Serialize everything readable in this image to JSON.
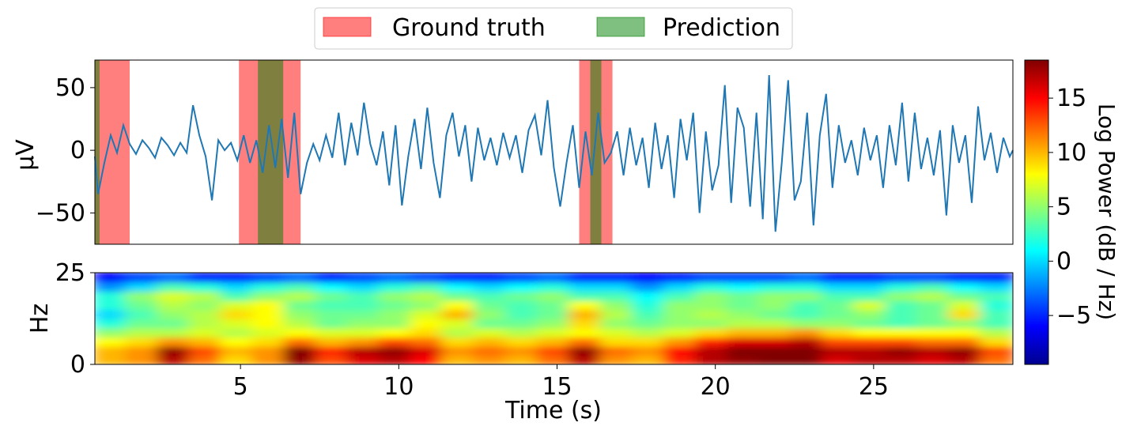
{
  "legend": {
    "placement": "top-center",
    "items": [
      {
        "label": "Ground truth",
        "color": "#ff0000",
        "alpha": 0.5
      },
      {
        "label": "Prediction",
        "color": "#008000",
        "alpha": 0.5
      }
    ]
  },
  "chart_data": [
    {
      "type": "line",
      "panel": "eeg-signal",
      "xlim": [
        0.4,
        29.4
      ],
      "ylim": [
        -75,
        72
      ],
      "ylabel": "µV",
      "yticks": [
        50,
        0,
        -50
      ],
      "ytick_labels": [
        "50",
        "0",
        "−50"
      ],
      "line_color": "#1f77b4",
      "grid": false,
      "ground_truth_intervals": [
        [
          0.4,
          1.5
        ],
        [
          4.95,
          6.9
        ],
        [
          15.7,
          16.75
        ]
      ],
      "prediction_intervals": [
        [
          0.4,
          0.55
        ],
        [
          5.55,
          6.35
        ],
        [
          16.05,
          16.4
        ]
      ],
      "series": [
        {
          "x": [
            0.4,
            0.5,
            0.7,
            0.9,
            1.1,
            1.3,
            1.5,
            1.7,
            1.9,
            2.1,
            2.3,
            2.5,
            2.7,
            2.9,
            3.1,
            3.3,
            3.5,
            3.7,
            3.9,
            4.1,
            4.3,
            4.5,
            4.7,
            4.9,
            5.1,
            5.3,
            5.5,
            5.7,
            5.9,
            6.1,
            6.3,
            6.5,
            6.7,
            6.9,
            7.1,
            7.3,
            7.5,
            7.7,
            7.9,
            8.1,
            8.3,
            8.5,
            8.7,
            8.9,
            9.1,
            9.3,
            9.5,
            9.7,
            9.9,
            10.1,
            10.3,
            10.5,
            10.7,
            10.9,
            11.1,
            11.3,
            11.5,
            11.7,
            11.9,
            12.1,
            12.3,
            12.5,
            12.7,
            12.9,
            13.1,
            13.3,
            13.5,
            13.7,
            13.9,
            14.1,
            14.3,
            14.5,
            14.7,
            14.9,
            15.1,
            15.3,
            15.5,
            15.7,
            15.9,
            16.1,
            16.3,
            16.5,
            16.7,
            16.9,
            17.1,
            17.3,
            17.5,
            17.7,
            17.9,
            18.1,
            18.3,
            18.5,
            18.7,
            18.9,
            19.1,
            19.3,
            19.5,
            19.7,
            19.9,
            20.1,
            20.3,
            20.5,
            20.7,
            20.9,
            21.1,
            21.3,
            21.5,
            21.7,
            21.9,
            22.1,
            22.3,
            22.5,
            22.7,
            22.9,
            23.1,
            23.3,
            23.5,
            23.7,
            23.9,
            24.1,
            24.3,
            24.5,
            24.7,
            24.9,
            25.1,
            25.3,
            25.5,
            25.7,
            25.9,
            26.1,
            26.3,
            26.5,
            26.7,
            26.9,
            27.1,
            27.3,
            27.5,
            27.7,
            27.9,
            28.1,
            28.3,
            28.5,
            28.7,
            28.9,
            29.1,
            29.3,
            29.4
          ],
          "values": [
            -5,
            -35,
            -10,
            12,
            -2,
            20,
            5,
            -3,
            8,
            2,
            -6,
            10,
            4,
            -4,
            6,
            -2,
            36,
            12,
            -5,
            -40,
            8,
            0,
            6,
            -8,
            12,
            -10,
            8,
            -18,
            20,
            -14,
            25,
            -22,
            30,
            -35,
            -10,
            5,
            -8,
            12,
            -6,
            30,
            -12,
            22,
            -4,
            38,
            5,
            -12,
            15,
            -28,
            20,
            -44,
            -5,
            25,
            -15,
            34,
            -10,
            -38,
            12,
            30,
            -5,
            20,
            -25,
            18,
            -8,
            10,
            -12,
            14,
            -6,
            12,
            -18,
            16,
            28,
            -4,
            40,
            -14,
            -45,
            -10,
            20,
            -30,
            15,
            -20,
            30,
            -10,
            -2,
            15,
            -20,
            18,
            -12,
            10,
            -30,
            22,
            -15,
            12,
            -38,
            25,
            -8,
            30,
            -50,
            15,
            -32,
            -12,
            52,
            -42,
            34,
            18,
            -45,
            30,
            -55,
            60,
            -65,
            -10,
            56,
            -40,
            -25,
            30,
            -60,
            12,
            45,
            -30,
            20,
            -10,
            8,
            -20,
            18,
            -8,
            12,
            -30,
            20,
            -12,
            38,
            -25,
            30,
            -15,
            10,
            -20,
            16,
            -52,
            20,
            -10,
            12,
            -42,
            35,
            -8,
            14,
            -18,
            10,
            -5,
            0
          ]
        }
      ],
      "xticks": [
        5,
        10,
        15,
        20,
        25
      ],
      "xtick_labels": [
        "5",
        "10",
        "15",
        "20",
        "25"
      ]
    },
    {
      "type": "heatmap",
      "panel": "spectrogram",
      "xlim": [
        0.4,
        29.4
      ],
      "ylim": [
        0,
        25
      ],
      "xlabel": "Time (s)",
      "ylabel": "Hz",
      "yticks": [
        25,
        0
      ],
      "ytick_labels": [
        "25",
        "0"
      ],
      "xticks": [
        5,
        10,
        15,
        20,
        25
      ],
      "xtick_labels": [
        "5",
        "10",
        "15",
        "20",
        "25"
      ],
      "colormap": "jet",
      "freq_bands_hz": [
        0,
        2.5,
        5,
        7.5,
        10,
        12.5,
        15,
        17.5,
        20,
        22.5,
        25
      ],
      "time_bins_s": [
        0.4,
        1.4,
        2.4,
        3.4,
        4.4,
        5.4,
        6.4,
        7.4,
        8.4,
        9.4,
        10.4,
        11.4,
        12.4,
        13.4,
        14.4,
        15.4,
        16.4,
        17.4,
        18.4,
        19.4,
        20.4,
        21.4,
        22.4,
        23.4,
        24.4,
        25.4,
        26.4,
        27.4,
        28.4
      ],
      "log_power_db": [
        [
          10,
          11,
          17,
          12,
          9,
          11,
          18,
          13,
          16,
          17,
          15,
          10,
          11,
          10,
          12,
          17,
          11,
          10,
          14,
          17,
          18,
          19,
          19,
          16,
          17,
          17,
          16,
          17,
          12
        ],
        [
          10,
          11,
          18,
          13,
          10,
          11,
          19,
          14,
          17,
          18,
          16,
          11,
          12,
          11,
          13,
          18,
          12,
          11,
          15,
          17,
          19,
          19,
          19,
          17,
          17,
          18,
          17,
          18,
          13
        ],
        [
          8,
          9,
          11,
          10,
          8,
          9,
          12,
          10,
          11,
          13,
          12,
          9,
          10,
          9,
          10,
          12,
          9,
          9,
          11,
          14,
          16,
          16,
          17,
          13,
          13,
          13,
          12,
          12,
          9
        ],
        [
          5,
          6,
          6,
          7,
          6,
          7,
          8,
          7,
          7,
          8,
          9,
          6,
          7,
          6,
          7,
          8,
          7,
          6,
          7,
          9,
          10,
          10,
          11,
          9,
          8,
          8,
          8,
          8,
          6
        ],
        [
          2,
          4,
          4,
          6,
          7,
          8,
          6,
          4,
          5,
          5,
          8,
          7,
          4,
          4,
          5,
          9,
          5,
          4,
          5,
          5,
          6,
          6,
          5,
          5,
          4,
          3,
          4,
          5,
          3
        ],
        [
          0,
          3,
          5,
          6,
          9,
          8,
          5,
          4,
          4,
          5,
          7,
          10,
          5,
          3,
          4,
          10,
          6,
          3,
          5,
          6,
          5,
          4,
          3,
          4,
          5,
          3,
          4,
          9,
          3
        ],
        [
          2,
          4,
          6,
          5,
          7,
          8,
          4,
          3,
          3,
          4,
          5,
          8,
          4,
          3,
          4,
          8,
          5,
          2,
          5,
          5,
          4,
          5,
          3,
          4,
          7,
          3,
          4,
          7,
          2
        ],
        [
          2,
          5,
          7,
          6,
          3,
          5,
          6,
          4,
          3,
          5,
          6,
          4,
          3,
          4,
          5,
          3,
          3,
          1,
          3,
          5,
          4,
          5,
          5,
          3,
          3,
          5,
          6,
          4,
          3
        ],
        [
          -2,
          0,
          3,
          2,
          0,
          2,
          3,
          1,
          0,
          2,
          3,
          1,
          0,
          1,
          2,
          0,
          0,
          -2,
          0,
          2,
          1,
          2,
          2,
          0,
          0,
          2,
          3,
          1,
          0
        ],
        [
          -6,
          -4,
          -3,
          -5,
          -5,
          -4,
          -3,
          -5,
          -4,
          -3,
          -4,
          -5,
          -5,
          -4,
          -3,
          -5,
          -5,
          -6,
          -5,
          -4,
          -4,
          -4,
          -3,
          -5,
          -5,
          -4,
          -4,
          -5,
          -5
        ],
        [
          -9,
          -8,
          -7,
          -9,
          -9,
          -8,
          -7,
          -9,
          -8,
          -7,
          -8,
          -9,
          -9,
          -8,
          -7,
          -9,
          -9,
          -9,
          -9,
          -8,
          -8,
          -8,
          -7,
          -9,
          -9,
          -8,
          -8,
          -9,
          -9
        ]
      ]
    },
    {
      "type": "colorbar",
      "panel": "colorbar",
      "label": "Log Power (dB / Hz)",
      "range": [
        -9.5,
        18.5
      ],
      "ticks": [
        15,
        10,
        5,
        0,
        -5
      ],
      "tick_labels": [
        "15",
        "10",
        "5",
        "0",
        "−5"
      ],
      "colormap": "jet"
    }
  ]
}
